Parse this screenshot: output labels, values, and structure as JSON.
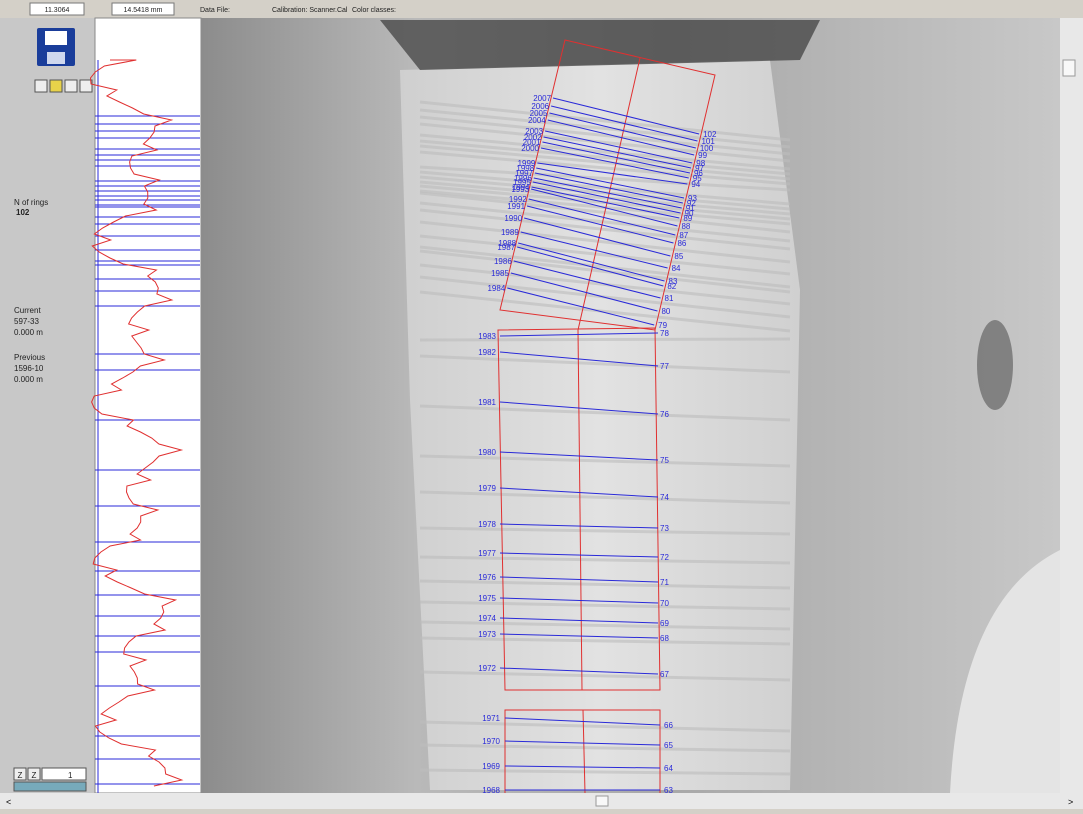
{
  "toolbar": {
    "field1": "11.3064",
    "field2": "14.5418 mm",
    "data_file": "Data File:",
    "calibration": "Calibration: Scanner.Cal",
    "color_classes": "Color classes:"
  },
  "side_panel": {
    "rings_label": "N of rings",
    "rings_value": "102",
    "current_label": "Current",
    "current_id": "597-33",
    "current_pos": "0.000 m",
    "previous_label": "Previous",
    "previous_id": "1596-10",
    "previous_pos": "0.000 m",
    "zoom1": "Z",
    "zoom2": "Z",
    "zoom_value": "1"
  },
  "rings": [
    {
      "year": "2007",
      "number": "102"
    },
    {
      "year": "2006",
      "number": "101"
    },
    {
      "year": "2005",
      "number": "100"
    },
    {
      "year": "2004",
      "number": "99"
    },
    {
      "year": "2003",
      "number": "98"
    },
    {
      "year": "2002",
      "number": "97"
    },
    {
      "year": "2001",
      "number": "96"
    },
    {
      "year": "2000",
      "number": "95"
    },
    {
      "year": "1999",
      "number": "94"
    },
    {
      "year": "1998",
      "number": "93"
    },
    {
      "year": "1997",
      "number": "92"
    },
    {
      "year": "1996",
      "number": "91"
    },
    {
      "year": "1995",
      "number": "90"
    },
    {
      "year": "1994",
      "number": "89"
    },
    {
      "year": "1993",
      "number": "88"
    },
    {
      "year": "1992",
      "number": "87"
    },
    {
      "year": "1991",
      "number": "86"
    },
    {
      "year": "1990",
      "number": "85"
    },
    {
      "year": "1989",
      "number": "84"
    },
    {
      "year": "1988",
      "number": "83"
    },
    {
      "year": "1987",
      "number": "82"
    },
    {
      "year": "1986",
      "number": "81"
    },
    {
      "year": "1985",
      "number": "80"
    },
    {
      "year": "1984",
      "number": "79"
    },
    {
      "year": "1983",
      "number": "78"
    },
    {
      "year": "1982",
      "number": "77"
    },
    {
      "year": "1981",
      "number": "76"
    },
    {
      "year": "1980",
      "number": "75"
    },
    {
      "year": "1979",
      "number": "74"
    },
    {
      "year": "1978",
      "number": "73"
    },
    {
      "year": "1977",
      "number": "72"
    },
    {
      "year": "1976",
      "number": "71"
    },
    {
      "year": "1975",
      "number": "70"
    },
    {
      "year": "1974",
      "number": "69"
    },
    {
      "year": "1973",
      "number": "68"
    },
    {
      "year": "1972",
      "number": "67"
    },
    {
      "year": "1971",
      "number": "66"
    },
    {
      "year": "1970",
      "number": "65"
    },
    {
      "year": "1969",
      "number": "64"
    },
    {
      "year": "1968",
      "number": "63"
    }
  ]
}
